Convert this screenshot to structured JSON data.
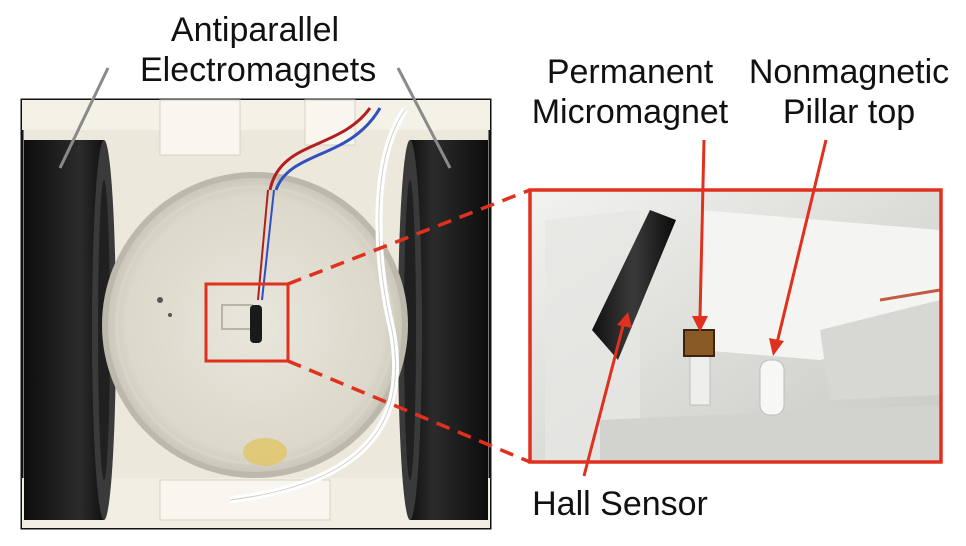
{
  "labels": {
    "electromagnets_line1": "Antiparallel",
    "electromagnets_line2": "Electromagnets",
    "micromagnet_line1": "Permanent",
    "micromagnet_line2": "Micromagnet",
    "pillar_line1": "Nonmagnetic",
    "pillar_line2": "Pillar top",
    "hall_sensor": "Hall Sensor"
  },
  "colors": {
    "callout": "#e0301e",
    "leader": "#8a8a8a"
  }
}
